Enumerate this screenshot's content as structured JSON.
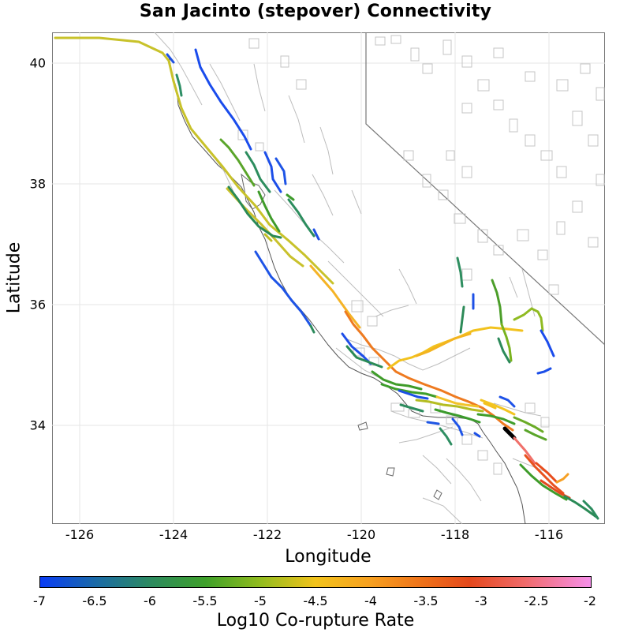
{
  "title": "San Jacinto (stepover) Connectivity",
  "xlabel": "Longitude",
  "ylabel": "Latitude",
  "x_ticks": [
    "-126",
    "-124",
    "-122",
    "-120",
    "-118",
    "-116"
  ],
  "y_ticks": [
    "40",
    "38",
    "36",
    "34"
  ],
  "colorbar": {
    "label": "Log10 Co-rupture Rate",
    "ticks": [
      "-7",
      "-6.5",
      "-6",
      "-5.5",
      "-5",
      "-4.5",
      "-4",
      "-3.5",
      "-3",
      "-2.5",
      "-2"
    ],
    "range": [
      -7,
      -2
    ],
    "colors": [
      "#0a3cf5",
      "#1a6aa8",
      "#2c8a60",
      "#3ea02a",
      "#92bc1e",
      "#f2c31c",
      "#f7a020",
      "#ee6f1a",
      "#e4481c",
      "#f06a6a",
      "#f690ea"
    ]
  },
  "map": {
    "xlim": [
      -126.7,
      -115.1
    ],
    "ylim": [
      32.35,
      40.5
    ],
    "source_fault_color": "#000000",
    "background_fault_color": "#bdbdbd",
    "coastline_color": "#555555"
  }
}
